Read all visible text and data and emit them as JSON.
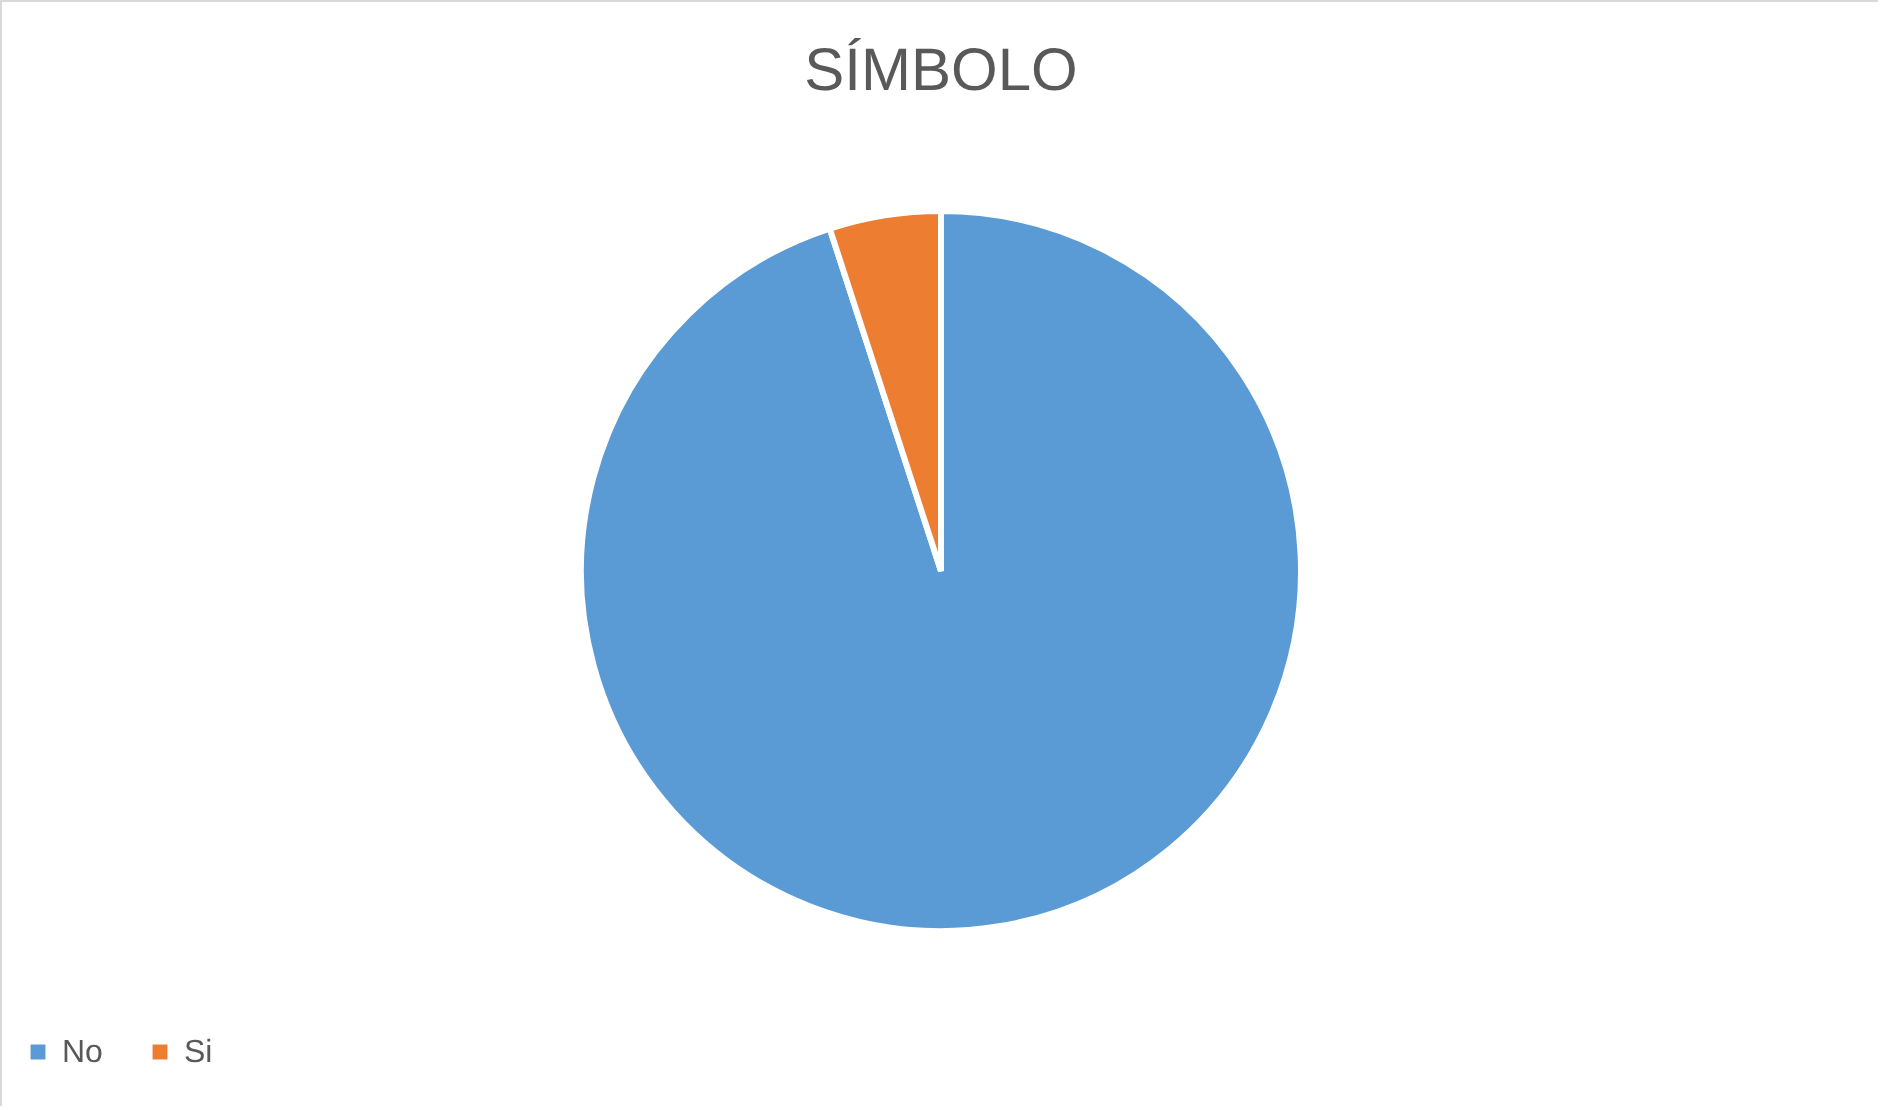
{
  "chart_data": {
    "type": "pie",
    "title": "SÍMBOLO",
    "categories": [
      "No",
      "Si"
    ],
    "values": [
      95,
      5
    ],
    "colors": [
      "#5b9bd5",
      "#ed7d31"
    ],
    "legend": "bottom"
  }
}
